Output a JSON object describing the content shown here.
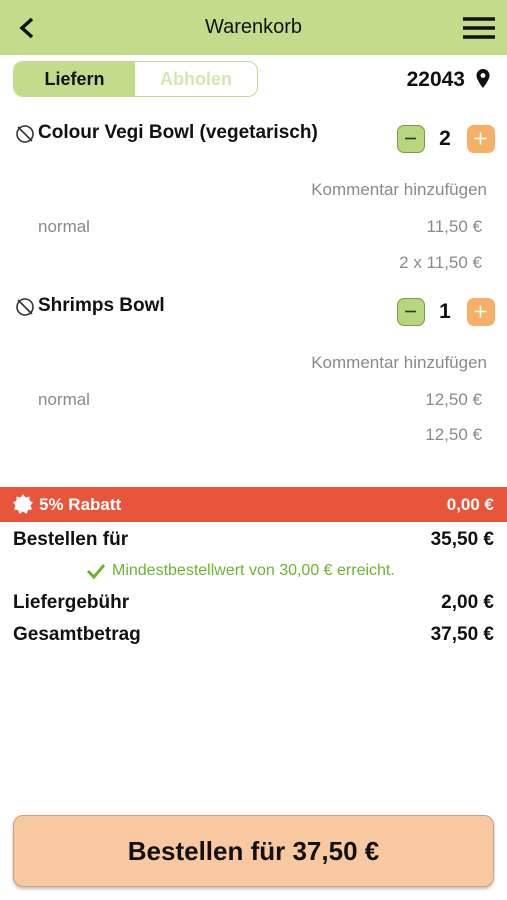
{
  "header": {
    "title": "Warenkorb"
  },
  "delivery_toggle": {
    "options": [
      "Liefern",
      "Abholen"
    ]
  },
  "postal_code": "22043",
  "items": [
    {
      "name": "Colour Vegi Bowl (vegetarisch)",
      "quantity": 2,
      "comment_link": "Kommentar hinzufügen",
      "variant": "normal",
      "unit_price": "11,50 €",
      "line_total": "2 x 11,50 €"
    },
    {
      "name": "Shrimps Bowl",
      "quantity": 1,
      "comment_link": "Kommentar hinzufügen",
      "variant": "normal",
      "unit_price": "12,50 €",
      "line_total": "12,50 €"
    }
  ],
  "discount": {
    "label": "5% Rabatt",
    "amount": "0,00 €"
  },
  "summary": {
    "subtotal": {
      "label": "Bestellen für",
      "amount": "35,50 €"
    },
    "minimum_note": "Mindestbestellwert von 30,00 € erreicht.",
    "delivery_fee": {
      "label": "Liefergebühr",
      "amount": "2,00 €"
    },
    "total": {
      "label": "Gesamtbetrag",
      "amount": "37,50 €"
    }
  },
  "order_button": "Bestellen für 37,50 €"
}
